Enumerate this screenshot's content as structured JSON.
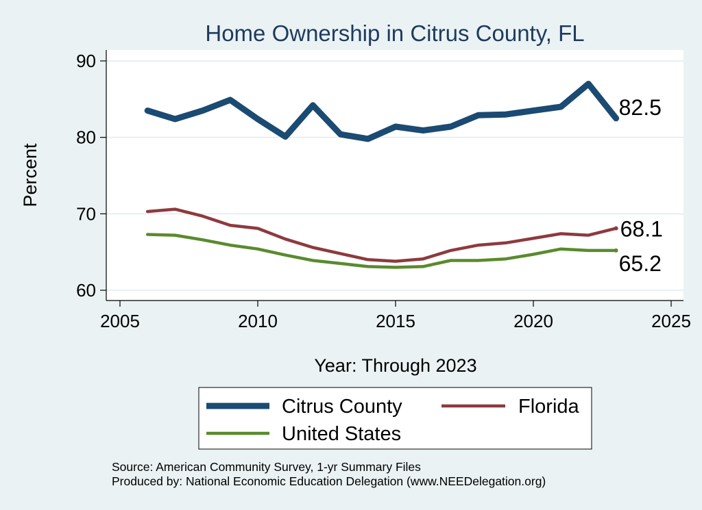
{
  "chart_data": {
    "type": "line",
    "title": "Home Ownership in Citrus County, FL",
    "xlabel": "Year: Through 2023",
    "ylabel": "Percent",
    "xlim": [
      2005,
      2025
    ],
    "ylim": [
      60,
      90
    ],
    "xticks": [
      2005,
      2010,
      2015,
      2020,
      2025
    ],
    "yticks": [
      60,
      70,
      80,
      90
    ],
    "grid": true,
    "x": [
      2006,
      2007,
      2008,
      2009,
      2010,
      2011,
      2012,
      2013,
      2014,
      2015,
      2016,
      2017,
      2018,
      2019,
      2020,
      2021,
      2022,
      2023
    ],
    "series": [
      {
        "name": "Citrus County",
        "color": "#1b4a72",
        "values": [
          83.5,
          82.4,
          83.5,
          84.9,
          82.4,
          80.1,
          84.2,
          80.4,
          79.8,
          81.4,
          80.9,
          81.4,
          82.9,
          83.0,
          83.5,
          84.0,
          87.0,
          82.5
        ],
        "end_label": "82.5"
      },
      {
        "name": "Florida",
        "color": "#8e3a3e",
        "values": [
          70.3,
          70.6,
          69.7,
          68.5,
          68.1,
          66.7,
          65.6,
          64.8,
          64.0,
          63.8,
          64.1,
          65.2,
          65.9,
          66.2,
          66.8,
          67.4,
          67.2,
          68.1
        ],
        "end_label": "68.1"
      },
      {
        "name": "United States",
        "color": "#5a8a2e",
        "values": [
          67.3,
          67.2,
          66.6,
          65.9,
          65.4,
          64.6,
          63.9,
          63.5,
          63.1,
          63.0,
          63.1,
          63.9,
          63.9,
          64.1,
          64.7,
          65.4,
          65.2,
          65.2
        ],
        "end_label": "65.2"
      }
    ],
    "legend": {
      "position": "bottom",
      "entries": [
        "Citrus County",
        "Florida",
        "United States"
      ]
    },
    "notes": [
      "Source: American Community Survey, 1-yr Summary Files",
      "Produced by: National Economic Education Delegation (www.NEEDelegation.org)"
    ]
  }
}
